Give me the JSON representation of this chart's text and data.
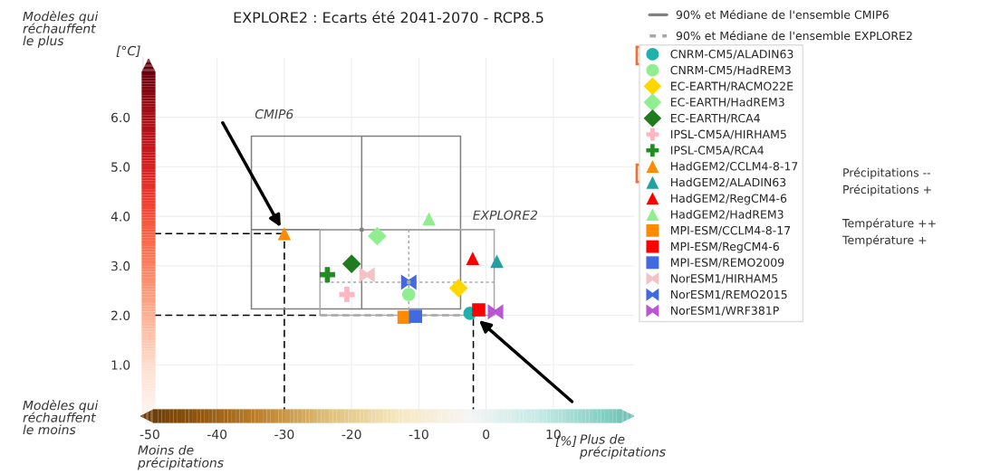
{
  "chart_data": {
    "type": "scatter",
    "title": "EXPLORE2 : Ecarts été 2041-2070 - RCP8.5",
    "xlabel": "[%]",
    "ylabel": "[°C]",
    "xlim": [
      -51,
      22
    ],
    "ylim": [
      0,
      7.2
    ],
    "xticks": [
      -50,
      -40,
      -30,
      -20,
      -10,
      0,
      10
    ],
    "yticks": [
      {
        "value": 1,
        "label": "1.0"
      },
      {
        "value": 2,
        "label": "2.0"
      },
      {
        "value": 3,
        "label": "3.0"
      },
      {
        "value": 4,
        "label": "4.0"
      },
      {
        "value": 5,
        "label": "5.0"
      },
      {
        "value": 6,
        "label": "6.0"
      }
    ],
    "grid": true,
    "legend": "right",
    "series": [
      {
        "name": "90% et Médiane de l'ensemble CMIP6",
        "color": "#808080",
        "line_style": "solid",
        "marker": "square",
        "x": [
          -18.5
        ],
        "values": [
          3.73
        ],
        "xerrors": [
          [
            -34.9,
            -3.8
          ]
        ],
        "errors": [
          [
            2.13,
            5.62
          ]
        ]
      },
      {
        "name": "90% et Médiane de l'ensemble EXPLORE2",
        "color": "#a8a8a8",
        "line_style": "dotted",
        "marker": "square",
        "x": [
          -11.5
        ],
        "values": [
          2.67
        ],
        "xerrors": [
          [
            -24.7,
            1.2
          ]
        ],
        "errors": [
          [
            2.0,
            3.73
          ]
        ]
      },
      {
        "name": "CNRM-CM5/ALADIN63",
        "color": "#20b2aa",
        "marker": "circle",
        "x": [
          -2.4
        ],
        "values": [
          2.04
        ]
      },
      {
        "name": "CNRM-CM5/HadREM3",
        "color": "#90ee90",
        "marker": "circle",
        "x": [
          -11.5
        ],
        "values": [
          2.42
        ]
      },
      {
        "name": "EC-EARTH/RACMO22E",
        "color": "#ffd700",
        "marker": "diamond",
        "x": [
          -4.1
        ],
        "values": [
          2.55
        ]
      },
      {
        "name": "EC-EARTH/HadREM3",
        "color": "#90ee90",
        "marker": "diamond",
        "x": [
          -16.2
        ],
        "values": [
          3.6
        ]
      },
      {
        "name": "EC-EARTH/RCA4",
        "color": "#1e7b1e",
        "marker": "diamond",
        "x": [
          -20
        ],
        "values": [
          3.04
        ]
      },
      {
        "name": "IPSL-CM5A/HIRHAM5",
        "color": "#ffb6c1",
        "marker": "cross",
        "x": [
          -20.7
        ],
        "values": [
          2.42
        ]
      },
      {
        "name": "IPSL-CM5A/RCA4",
        "color": "#228b22",
        "marker": "cross",
        "x": [
          -23.6
        ],
        "values": [
          2.82
        ]
      },
      {
        "name": "HadGEM2/CCLM4-8-17",
        "color": "#ff8c00",
        "marker": "triangle",
        "x": [
          -30
        ],
        "values": [
          3.65
        ]
      },
      {
        "name": "HadGEM2/ALADIN63",
        "color": "#20a0a0",
        "marker": "triangle",
        "x": [
          1.6
        ],
        "values": [
          3.09
        ]
      },
      {
        "name": "HadGEM2/RegCM4-6",
        "color": "#ff0000",
        "marker": "triangle",
        "x": [
          -2
        ],
        "values": [
          3.15
        ]
      },
      {
        "name": "HadGEM2/HadREM3",
        "color": "#90ee90",
        "marker": "triangle",
        "x": [
          -8.5
        ],
        "values": [
          3.95
        ]
      },
      {
        "name": "MPI-ESM/CCLM4-8-17",
        "color": "#ff8c00",
        "marker": "square",
        "x": [
          -12.2
        ],
        "values": [
          1.96
        ]
      },
      {
        "name": "MPI-ESM/RegCM4-6",
        "color": "#ff0000",
        "marker": "square",
        "x": [
          -1.1
        ],
        "values": [
          2.11
        ]
      },
      {
        "name": "MPI-ESM/REMO2009",
        "color": "#4169e1",
        "marker": "square",
        "x": [
          -10.5
        ],
        "values": [
          1.98
        ]
      },
      {
        "name": "NorESM1/HIRHAM5",
        "color": "#f4c2c2",
        "x": [
          -17.7
        ],
        "values": [
          2.82
        ]
      },
      {
        "name": "NorESM1/REMO2015",
        "color": "#4169e1",
        "x": [
          -11.5
        ],
        "values": [
          2.67
        ]
      },
      {
        "name": "NorESM1/WRF381P",
        "color": "#ba55d3",
        "x": [
          1.4
        ],
        "values": [
          2.07
        ]
      }
    ],
    "annotations": [
      "Modèles qui\nréchauffent\nle plus",
      "Modèles qui\nréchauffent\nle moins",
      "Moins de\nprécipitations",
      "Plus de\nprécipitations",
      "Précipitations --",
      "Précipitations +",
      "Température ++",
      "Température +",
      "CMIP6",
      "EXPLORE2"
    ],
    "ref_lines": [
      {
        "axis": "y",
        "value": 3.65,
        "color": "#000000",
        "line_style": "dashed"
      },
      {
        "axis": "x",
        "value": -30,
        "color": "#000000",
        "line_style": "dashed"
      },
      {
        "axis": "y",
        "value": 2.0,
        "color": "#000000",
        "line_style": "dashed"
      },
      {
        "axis": "x",
        "value": -1.9,
        "color": "#000000",
        "line_style": "dashed"
      }
    ]
  }
}
